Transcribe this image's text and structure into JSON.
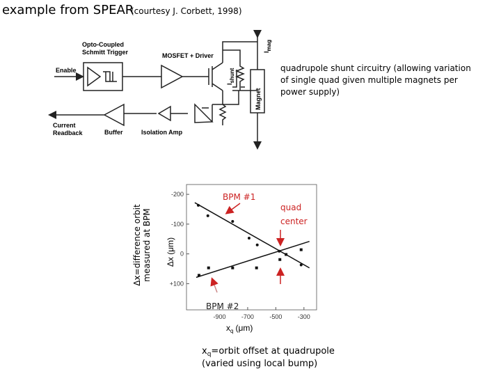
{
  "header": {
    "title": "example from SPEAR",
    "credit": "(courtesy J. Corbett, 1998)"
  },
  "circuit": {
    "opto": "Opto-Coupled",
    "schmitt": "Schmitt Trigger",
    "mosfet": "MOSFET + Driver",
    "enable": "Enable",
    "current": "Current",
    "readback": "Readback",
    "buffer": "Buffer",
    "isolation": "Isolation Amp",
    "imag": "I",
    "imag_sub": "mag",
    "ishunt": "I",
    "ishunt_sub": "shunt",
    "magnet": "Magnet"
  },
  "caption": [
    "quadrupole shunt circuitry (allowing variation",
    "of single quad given multiple magnets per",
    "power supply)"
  ],
  "y_note": [
    "Δx=difference orbit",
    "measured at BPM"
  ],
  "x_note": {
    "symbol": "x",
    "sub": "q",
    "rest": "=orbit offset at quadrupole",
    "line2": "(varied using local bump)"
  },
  "chart_data": {
    "type": "scatter",
    "ylabel": "Δx (μm)",
    "xlabel": "x",
    "xlabel_sub": "q",
    "xlabel_unit": "(μm)",
    "xlim": [
      -1135,
      -210
    ],
    "ylim": [
      -233,
      188
    ],
    "y_inverted": true,
    "xticks": [
      -900,
      -700,
      -500,
      -300
    ],
    "yticks": [
      -200,
      -100,
      0,
      {
        "value": 100,
        "label": "+100"
      }
    ],
    "series": [
      {
        "marker": "circle",
        "color": "#111111",
        "x": [
          -1051,
          -983,
          -807,
          -690,
          -632,
          -476,
          -320
        ],
        "values": [
          -163,
          -128,
          -109,
          -53,
          -30,
          -9,
          37
        ]
      },
      {
        "marker": "square",
        "color": "#111111",
        "x": [
          -1046,
          -978,
          -807,
          -637,
          -471,
          -427,
          -320
        ],
        "values": [
          72,
          47,
          47,
          47,
          19,
          2,
          -14
        ]
      }
    ],
    "fit_lines": [
      {
        "x": [
          -1076,
          -261
        ],
        "values": [
          -172,
          47
        ]
      },
      {
        "x": [
          -1066,
          -261
        ],
        "values": [
          79,
          -42
        ]
      }
    ],
    "annotations": {
      "bpm1": "BPM #1",
      "bpm2": "BPM #2",
      "quad": "quad",
      "center": "center"
    },
    "annotation_color": "#cc2222"
  }
}
